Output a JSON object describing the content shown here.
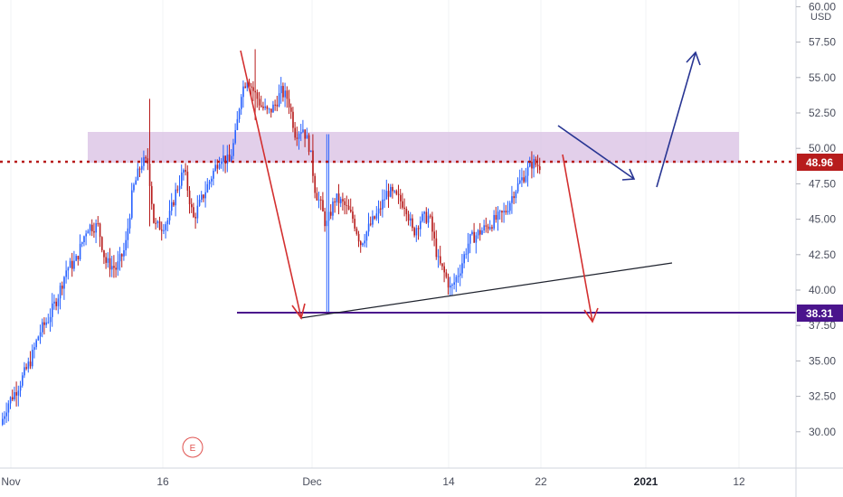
{
  "chart_data": {
    "type": "candlestick",
    "currency": "USD",
    "y_ticks": [
      "60.00",
      "57.50",
      "55.00",
      "52.50",
      "50.00",
      "47.50",
      "45.00",
      "42.50",
      "40.00",
      "37.50",
      "35.00",
      "32.50",
      "30.00"
    ],
    "x_ticks": [
      {
        "label": "Nov",
        "bold": false
      },
      {
        "label": "16",
        "bold": false
      },
      {
        "label": "Dec",
        "bold": false
      },
      {
        "label": "14",
        "bold": false
      },
      {
        "label": "22",
        "bold": false
      },
      {
        "label": "2021",
        "bold": true
      },
      {
        "label": "12",
        "bold": false
      }
    ],
    "price_lines": [
      {
        "value": "48.96",
        "color": "#b71c1c",
        "style": "dotted"
      },
      {
        "value": "38.31",
        "color": "#4a148c",
        "style": "solid"
      }
    ],
    "earnings_marker": "E",
    "colors": {
      "up": "#2962ff",
      "down": "#b71c1c",
      "zone": "#d1b3e0"
    }
  }
}
